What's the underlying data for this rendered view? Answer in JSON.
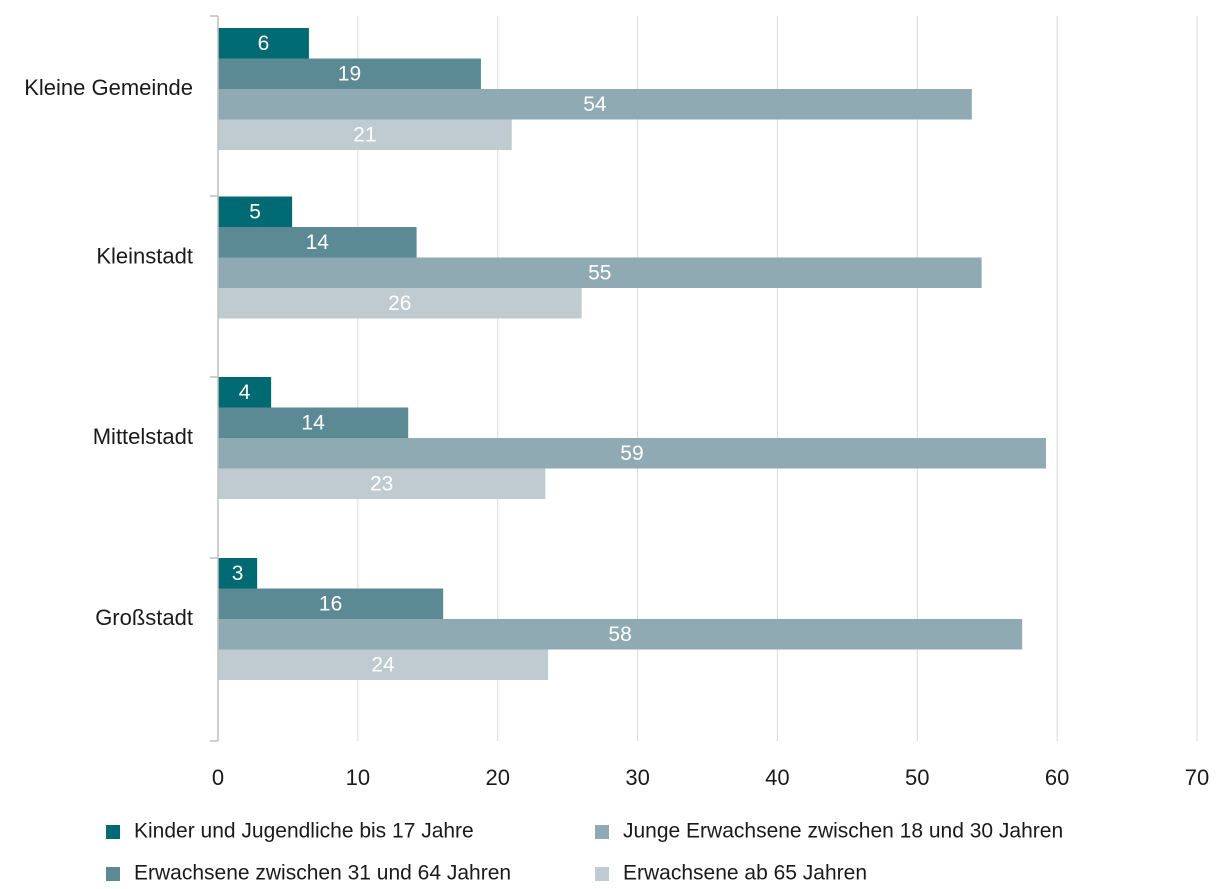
{
  "chart_data": {
    "type": "bar",
    "orientation": "horizontal",
    "categories": [
      "Kleine Gemeinde",
      "Kleinstadt",
      "Mittelstadt",
      "Großstadt"
    ],
    "series": [
      {
        "name": "Kinder und Jugendliche bis 17 Jahre",
        "values": [
          6,
          5,
          4,
          3
        ],
        "precise": [
          6.5,
          5.3,
          3.8,
          2.8
        ],
        "color": "#006a72"
      },
      {
        "name": "Erwachsene zwischen 31 und 64 Jahren",
        "values": [
          19,
          14,
          14,
          16
        ],
        "precise": [
          18.8,
          14.2,
          13.6,
          16.1
        ],
        "color": "#5b8a95"
      },
      {
        "name": "Junge Erwachsene zwischen 18 und 30 Jahren",
        "values": [
          54,
          55,
          59,
          58
        ],
        "precise": [
          53.9,
          54.6,
          59.2,
          57.5
        ],
        "color": "#8faab2"
      },
      {
        "name": "Erwachsene ab 65 Jahren",
        "values": [
          21,
          26,
          23,
          24
        ],
        "precise": [
          21.0,
          26.0,
          23.4,
          23.6
        ],
        "color": "#bfcbd0"
      }
    ],
    "xlim": [
      0,
      70
    ],
    "xticks": [
      0,
      10,
      20,
      30,
      40,
      50,
      60,
      70
    ],
    "title": "",
    "xlabel": "",
    "ylabel": "",
    "grid": "vertical",
    "legend_position": "bottom",
    "legend_order": [
      0,
      2,
      1,
      3
    ]
  }
}
